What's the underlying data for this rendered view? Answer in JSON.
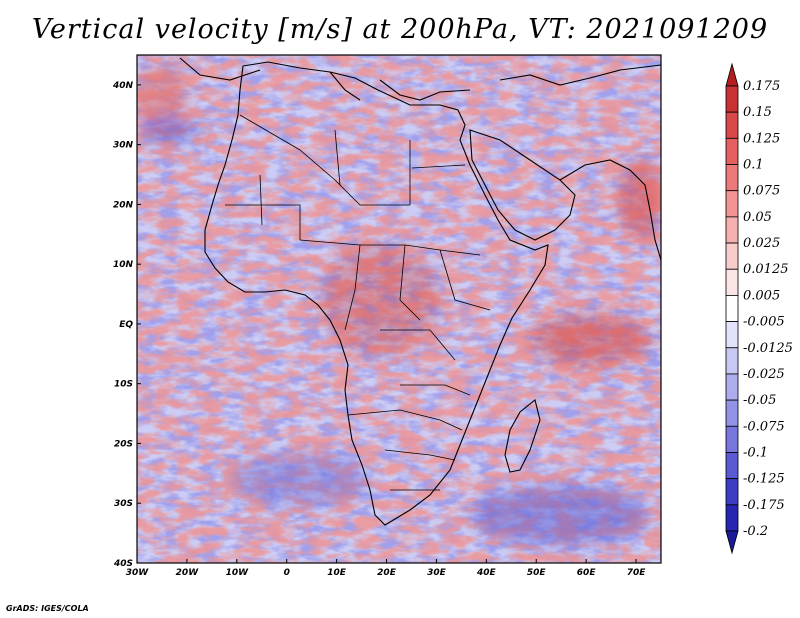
{
  "title": "Vertical velocity [m/s] at 200hPa, VT: 2021091209",
  "credit": "GrADS: IGES/COLA",
  "map": {
    "projection": "lat-lon",
    "lon_range": [
      -30,
      75
    ],
    "lat_range": [
      -40,
      45
    ],
    "lon_ticks": [
      {
        "value": -30,
        "label": "30W"
      },
      {
        "value": -20,
        "label": "20W"
      },
      {
        "value": -10,
        "label": "10W"
      },
      {
        "value": 0,
        "label": "0"
      },
      {
        "value": 10,
        "label": "10E"
      },
      {
        "value": 20,
        "label": "20E"
      },
      {
        "value": 30,
        "label": "30E"
      },
      {
        "value": 40,
        "label": "40E"
      },
      {
        "value": 50,
        "label": "50E"
      },
      {
        "value": 60,
        "label": "60E"
      },
      {
        "value": 70,
        "label": "70E"
      }
    ],
    "lat_ticks": [
      {
        "value": 40,
        "label": "40N"
      },
      {
        "value": 30,
        "label": "30N"
      },
      {
        "value": 20,
        "label": "20N"
      },
      {
        "value": 10,
        "label": "10N"
      },
      {
        "value": 0,
        "label": "EQ"
      },
      {
        "value": -10,
        "label": "10S"
      },
      {
        "value": -20,
        "label": "20S"
      },
      {
        "value": -30,
        "label": "30S"
      },
      {
        "value": -40,
        "label": "40S"
      }
    ],
    "field": "vertical velocity",
    "units": "m/s",
    "level": "200hPa",
    "valid_time": "2021091209"
  },
  "colorbar": {
    "labels": [
      "0.175",
      "0.15",
      "0.125",
      "0.1",
      "0.075",
      "0.05",
      "0.025",
      "0.0125",
      "0.005",
      "-0.005",
      "-0.0125",
      "-0.025",
      "-0.05",
      "-0.075",
      "-0.1",
      "-0.125",
      "-0.175",
      "-0.2"
    ],
    "colors": [
      "#b41e1e",
      "#c83232",
      "#d84848",
      "#e46060",
      "#ec7a7a",
      "#f29494",
      "#f6b0b0",
      "#f9cccc",
      "#fbe4e4",
      "#ffffff",
      "#e2e2fa",
      "#c8c8f4",
      "#adadee",
      "#9292e6",
      "#7676dc",
      "#5a5ad2",
      "#3c3cc4",
      "#2626b0",
      "#1a1a9a"
    ]
  }
}
